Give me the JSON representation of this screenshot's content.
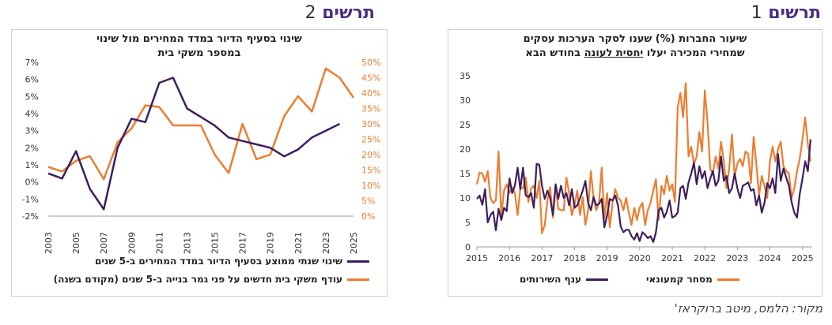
{
  "fig1": {
    "word": "תרשים",
    "num": "1"
  },
  "fig2": {
    "word": "תרשים",
    "num": "2"
  },
  "source": "מקור: הלמס, מיטב ברוקראז'",
  "chart_data": [
    {
      "type": "line",
      "title_line1": "שיעור החברות (%) שענו לסקר הערכות עסקים",
      "title_line2_before": "שמחירי המכירה יעלו ",
      "title_line2_bold": "יחסית לעונה",
      "title_line2_after": " בחודש הבא",
      "ylim": [
        0,
        35
      ],
      "y_ticks": [
        0,
        5,
        10,
        15,
        20,
        25,
        30,
        35
      ],
      "x_ticks": [
        "2015",
        "2016",
        "2017",
        "2018",
        "2019",
        "2020",
        "2021",
        "2022",
        "2023",
        "2024",
        "2025"
      ],
      "xlim": [
        2015,
        2025.3
      ],
      "colors": {
        "services": "#3d1f5c",
        "retail": "#ed7d31"
      },
      "series": [
        {
          "name": "ענף השירותים",
          "key": "services",
          "values": [
            9.8,
            10.5,
            8.6,
            11.8,
            5.0,
            6.5,
            7.2,
            3.4,
            7.8,
            5.5,
            8.0,
            7.3,
            14.0,
            11.0,
            12.5,
            16.2,
            11.8,
            16.2,
            10.5,
            10.2,
            11.0,
            8.0,
            17.0,
            16.8,
            12.5,
            9.8,
            11.5,
            10.0,
            6.5,
            12.8,
            9.8,
            12.5,
            10.0,
            11.0,
            8.5,
            11.8,
            8.0,
            8.5,
            10.0,
            11.5,
            13.5,
            9.0,
            7.5,
            10.2,
            8.5,
            8.8,
            9.8,
            4.0,
            6.5,
            9.8,
            9.5,
            10.5,
            8.5,
            4.2,
            3.0,
            3.5,
            3.5,
            2.2,
            1.5,
            2.8,
            1.2,
            3.0,
            2.5,
            1.8,
            2.2,
            1.0,
            3.0,
            7.5,
            8.0,
            6.0,
            7.2,
            9.5,
            6.0,
            6.3,
            7.0,
            12.0,
            12.5,
            9.8,
            13.2,
            15.0,
            17.2,
            12.8,
            16.5,
            14.0,
            15.5,
            12.0,
            14.0,
            15.5,
            12.5,
            13.5,
            18.5,
            13.5,
            14.5,
            11.0,
            12.0,
            15.0,
            12.0,
            10.0,
            12.5,
            12.8,
            13.2,
            11.5,
            11.8,
            8.5,
            10.5,
            7.0,
            9.0,
            13.0,
            12.0,
            14.0,
            11.0,
            19.0,
            13.5,
            16.0,
            14.2,
            12.5,
            9.2,
            7.0,
            6.0,
            10.8,
            14.0,
            17.5,
            15.5,
            22.0
          ]
        },
        {
          "name": "מסחר קמעונאי",
          "key": "retail",
          "values": [
            12.8,
            15.2,
            15.0,
            13.3,
            15.5,
            10.0,
            9.0,
            9.5,
            19.5,
            6.5,
            11.5,
            12.8,
            11.0,
            12.2,
            11.0,
            6.5,
            12.0,
            12.0,
            14.2,
            9.2,
            12.0,
            12.5,
            10.0,
            13.5,
            2.8,
            4.5,
            9.5,
            12.2,
            6.0,
            12.5,
            7.8,
            7.5,
            7.5,
            14.2,
            11.0,
            6.5,
            8.5,
            11.5,
            6.5,
            10.2,
            4.5,
            7.5,
            15.5,
            10.0,
            7.5,
            9.0,
            16.2,
            5.8,
            11.0,
            4.0,
            9.0,
            11.8,
            10.0,
            9.5,
            7.5,
            10.0,
            7.0,
            4.5,
            8.0,
            5.5,
            8.0,
            9.0,
            4.5,
            7.5,
            9.0,
            11.5,
            13.8,
            5.5,
            12.5,
            10.8,
            14.5,
            11.5,
            12.8,
            9.2,
            28.5,
            31.5,
            26.5,
            33.5,
            18.5,
            20.5,
            17.0,
            18.5,
            23.5,
            19.5,
            32.0,
            25.5,
            16.0,
            15.0,
            18.5,
            16.0,
            21.5,
            17.5,
            12.0,
            16.0,
            23.0,
            14.5,
            17.0,
            18.0,
            16.5,
            19.5,
            19.0,
            13.0,
            22.5,
            17.0,
            10.5,
            14.5,
            12.5,
            10.0,
            17.5,
            20.5,
            17.5,
            20.0,
            21.5,
            16.5,
            15.5,
            15.0,
            10.0,
            12.0,
            15.5,
            18.0,
            22.0,
            26.5,
            21.0,
            17.5
          ]
        }
      ]
    },
    {
      "type": "line",
      "title_line1": "שינוי בסעיף הדיור במדד המחירים מול שינוי",
      "title_line2": "במספר משקי בית",
      "x": [
        2003,
        2004,
        2005,
        2006,
        2007,
        2008,
        2009,
        2010,
        2011,
        2012,
        2013,
        2014,
        2015,
        2016,
        2017,
        2018,
        2019,
        2020,
        2021,
        2022,
        2023,
        2024,
        2025
      ],
      "x_ticks": [
        "2003",
        "2005",
        "2007",
        "2009",
        "2011",
        "2013",
        "2015",
        "2017",
        "2019",
        "2021",
        "2023",
        "2025"
      ],
      "y_left": {
        "ticks": [
          "-2%",
          "-1%",
          "0%",
          "1%",
          "2%",
          "3%",
          "4%",
          "5%",
          "6%",
          "7%"
        ],
        "lim": [
          -2,
          7
        ]
      },
      "y_right": {
        "ticks": [
          "0%",
          "5%",
          "10%",
          "15%",
          "20%",
          "25%",
          "30%",
          "35%",
          "40%",
          "45%",
          "50%"
        ],
        "lim": [
          0,
          50
        ]
      },
      "colors": {
        "housing": "#3d1f5c",
        "surplus": "#ed7d31"
      },
      "series": [
        {
          "name": "שינוי שנתי ממוצע בסעיף הדיור במדד המחירים ב-5 שנים",
          "key": "housing",
          "axis": "left",
          "values": [
            0.5,
            0.2,
            1.8,
            -0.4,
            -1.6,
            2.0,
            3.7,
            3.5,
            5.8,
            6.1,
            4.3,
            3.8,
            3.3,
            2.6,
            2.4,
            2.2,
            2.0,
            1.5,
            1.9,
            2.6,
            3.0,
            3.4,
            null
          ]
        },
        {
          "name": "עודף משקי בית חדשים על פני גמר בנייה ב-5 שנים (מקודם בשנה)",
          "key": "surplus",
          "axis": "right",
          "values": [
            16,
            14.5,
            18,
            19.5,
            12,
            24,
            28.5,
            36,
            35.5,
            29.5,
            29.5,
            29.5,
            20,
            14,
            30,
            18.5,
            20,
            32.5,
            39,
            34,
            48,
            45,
            38.5
          ]
        }
      ]
    }
  ]
}
